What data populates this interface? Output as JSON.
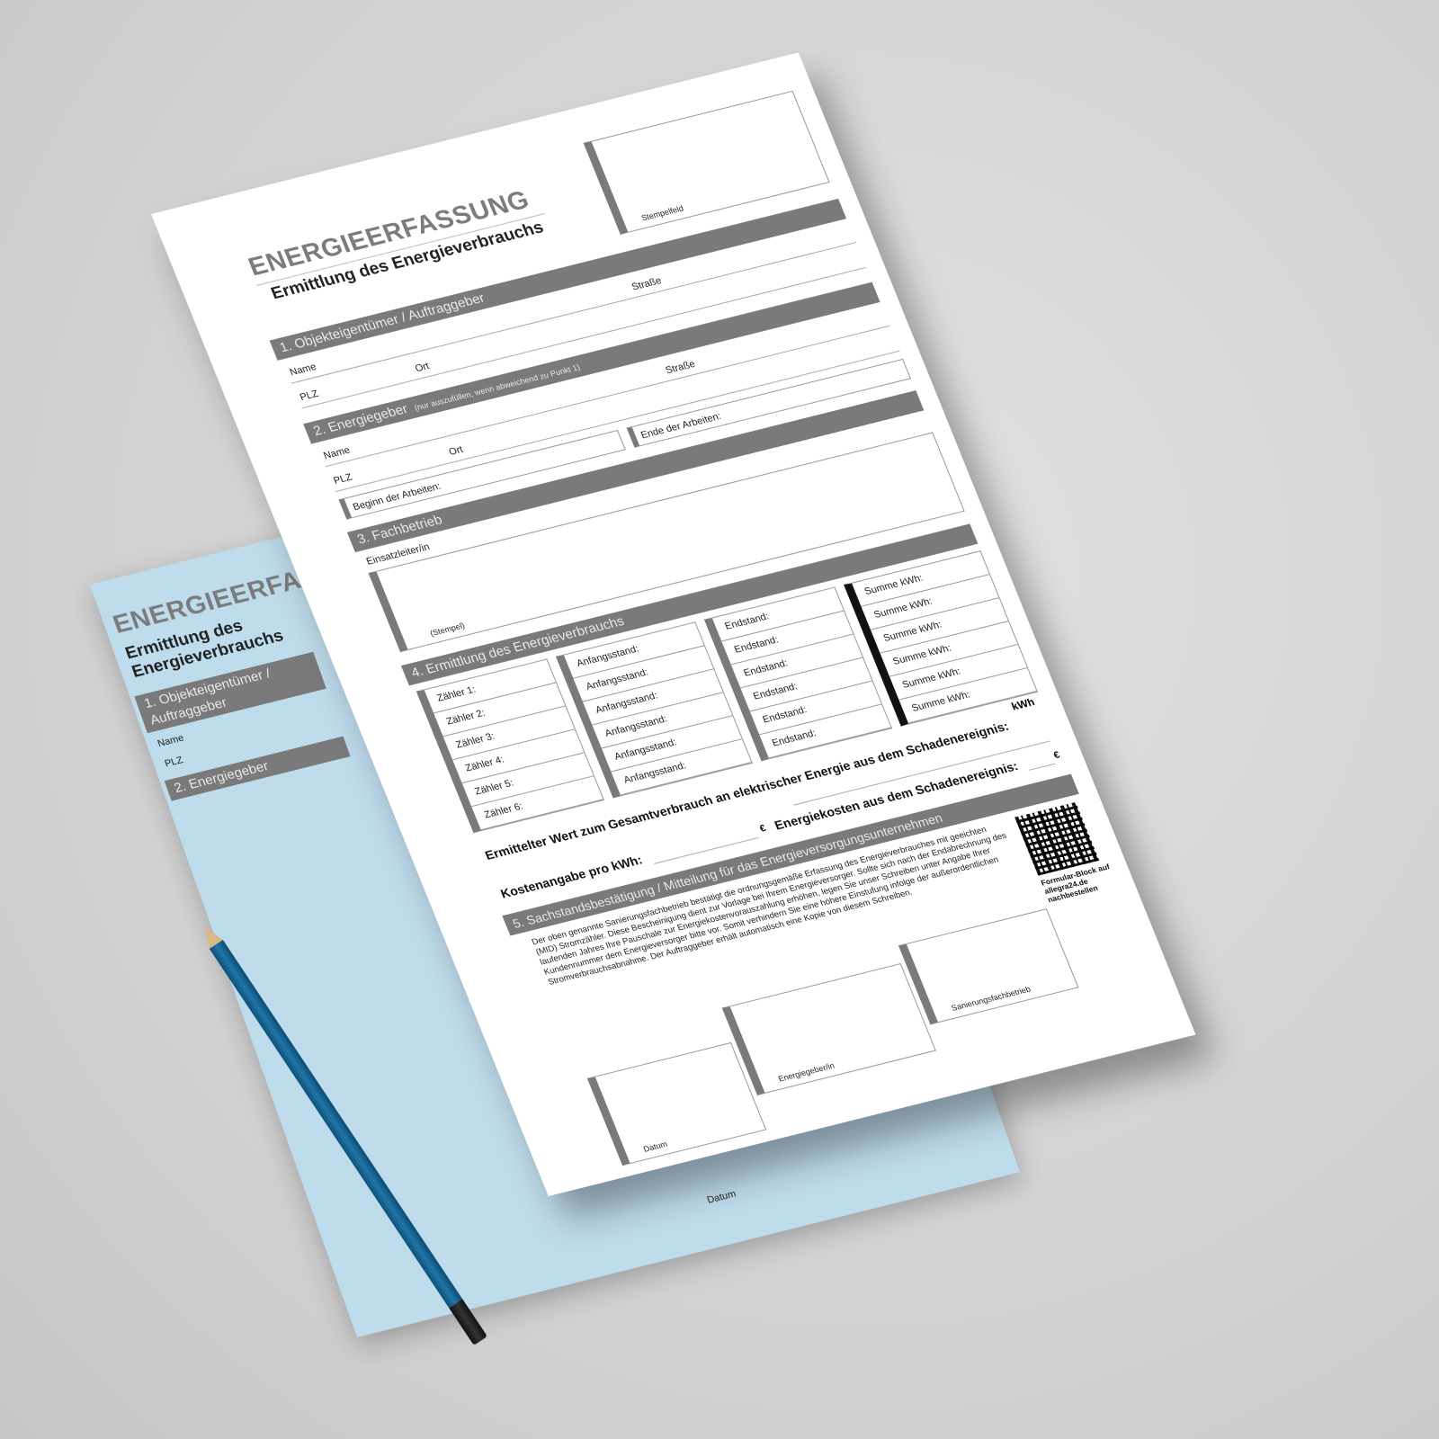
{
  "colors": {
    "background": "#d2d2d2",
    "section_bar": "#7a7a7a",
    "back_sheet": "#bfdcec",
    "pencil": "#1f77a8"
  },
  "back_sheet": {
    "title": "ENERGIEERFASSUNG",
    "subtitle": "Ermittlung des Energieverbrauchs",
    "section1": "1. Objekteigentümer / Auftraggeber",
    "section2": "2. Energiegeber",
    "name": "Name",
    "plz": "PLZ",
    "datum": "Datum"
  },
  "form": {
    "title": "ENERGIEERFASSUNG",
    "subtitle": "Ermittlung des Energieverbrauchs",
    "stamp_field": "Stempelfeld",
    "section1": {
      "title": "1. Objekteigentümer / Auftraggeber",
      "name": "Name",
      "street": "Straße",
      "zip": "PLZ",
      "city": "Ort"
    },
    "section2": {
      "title": "2. Energiegeber",
      "note": "(nur auszufüllen, wenn abweichend zu Punkt 1)",
      "name": "Name",
      "street": "Straße",
      "zip": "PLZ",
      "city": "Ort",
      "start": "Beginn der Arbeiten:",
      "end": "Ende der Arbeiten:"
    },
    "section3": {
      "title": "3. Fachbetrieb",
      "lead": "Einsatzleiter/in",
      "stamp": "(Stempel)"
    },
    "section4": {
      "title": "4. Ermittlung des Energieverbrauchs",
      "meters": [
        "Zähler 1:",
        "Zähler 2:",
        "Zähler 3:",
        "Zähler 4:",
        "Zähler 5:",
        "Zähler 6:"
      ],
      "start_readings": [
        "Anfangsstand:",
        "Anfangsstand:",
        "Anfangsstand:",
        "Anfangsstand:",
        "Anfangsstand:",
        "Anfangsstand:"
      ],
      "end_readings": [
        "Endstand:",
        "Endstand:",
        "Endstand:",
        "Endstand:",
        "Endstand:",
        "Endstand:"
      ],
      "sums": [
        "Summe kWh:",
        "Summe kWh:",
        "Summe kWh:",
        "Summe kWh:",
        "Summe kWh:",
        "Summe kWh:"
      ],
      "total_label": "Ermittelter Wert zum Gesamtverbrauch an elektrischer Energie aus dem Schadenereignis:",
      "total_unit": "kWh",
      "price_label": "Kostenangabe pro kWh:",
      "price_unit": "€",
      "cost_label": "Energiekosten aus dem Schadenereignis:",
      "cost_unit": "€"
    },
    "section5": {
      "title": "5. Sachstandsbestätigung / Mitteilung für das Energieversorgungsunternehmen",
      "text": "Der oben genannte Sanierungsfachbetrieb bestätigt die ordnungsgemäße Erfassung des Energieverbrauches mit geeichten (MID) Stromzähler. Diese Bescheinigung dient zur Vorlage bei Ihrem Energieversorger. Sollte sich nach der Endabrechnung des laufenden Jahres Ihre Pauschale zur Energiekostenvorauszahlung erhöhen, legen Sie unser Schreiben unter Angabe Ihrer Kundennummer dem Energieversorger bitte vor. Somit verhindern Sie eine höhere Einstufung infolge der außerordentlichen Stromverbrauchsabnahme. Der Auftraggeber erhält automatisch eine Kopie von diesem Schreiben.",
      "sig_company": "Sanierungsfachbetrieb",
      "sig_energy": "Energiegeber/in",
      "sig_date": "Datum"
    },
    "qr_text": "Formular-Block auf allegra24.de nachbestellen"
  }
}
